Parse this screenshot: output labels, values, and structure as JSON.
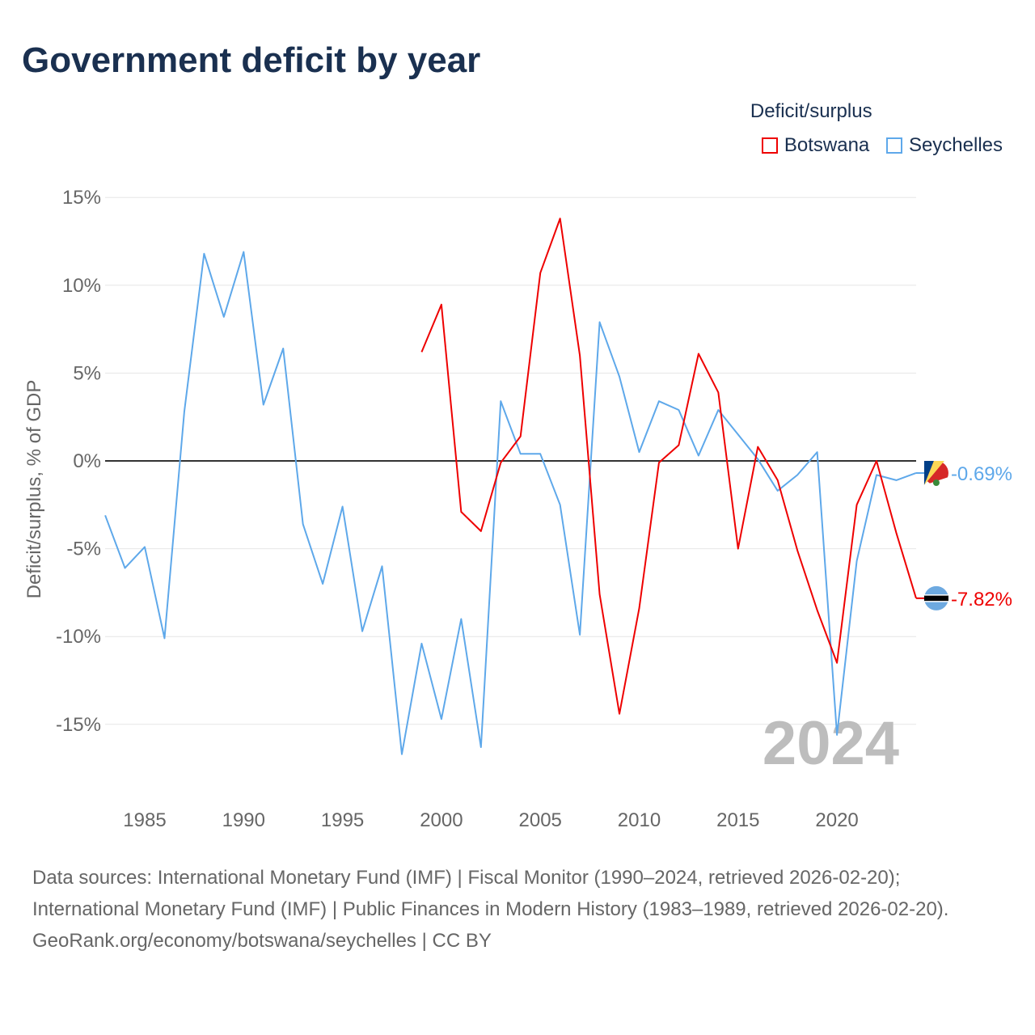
{
  "title": "Government deficit by year",
  "legend": {
    "title": "Deficit/surplus",
    "items": [
      {
        "name": "Botswana",
        "color": "#ee0000"
      },
      {
        "name": "Seychelles",
        "color": "#5ea8ea"
      }
    ]
  },
  "watermark_year": "2024",
  "end_labels": {
    "Botswana": "-7.82%",
    "Seychelles": "-0.69%"
  },
  "footer": {
    "sources": "Data sources: International Monetary Fund (IMF) | Fiscal Monitor (1990–2024, retrieved 2026-02-20); International Monetary Fund (IMF) | Public Finances in Modern History (1983–1989, retrieved 2026-02-20).",
    "credit": "GeoRank.org/economy/botswana/seychelles | CC BY"
  },
  "chart_data": {
    "type": "line",
    "title": "Government deficit by year",
    "xlabel": "",
    "ylabel": "Deficit/surplus, % of GDP",
    "xlim": [
      1983,
      2024
    ],
    "ylim": [
      -18,
      16
    ],
    "x_ticks": [
      1985,
      1990,
      1995,
      2000,
      2005,
      2010,
      2015,
      2020
    ],
    "y_ticks": [
      15,
      10,
      5,
      0,
      -5,
      -10,
      -15
    ],
    "y_tick_labels": [
      "15%",
      "10%",
      "5%",
      "0%",
      "-5%",
      "-10%",
      "-15%"
    ],
    "grid": true,
    "legend_position": "top-right",
    "series": [
      {
        "name": "Seychelles",
        "color": "#5ea8ea",
        "x": [
          1983,
          1984,
          1985,
          1986,
          1987,
          1988,
          1989,
          1990,
          1991,
          1992,
          1993,
          1994,
          1995,
          1996,
          1997,
          1998,
          1999,
          2000,
          2001,
          2002,
          2003,
          2004,
          2005,
          2006,
          2007,
          2008,
          2009,
          2010,
          2011,
          2012,
          2013,
          2014,
          2015,
          2016,
          2017,
          2018,
          2019,
          2020,
          2021,
          2022,
          2023,
          2024
        ],
        "values": [
          -3.1,
          -6.1,
          -4.9,
          -10.1,
          2.8,
          11.8,
          8.2,
          11.9,
          3.2,
          6.4,
          -3.6,
          -7.0,
          -2.6,
          -9.7,
          -6.0,
          -16.7,
          -10.4,
          -14.7,
          -9.0,
          -16.3,
          3.4,
          0.4,
          0.4,
          -2.5,
          -9.9,
          7.9,
          4.8,
          0.5,
          3.4,
          2.9,
          0.3,
          2.9,
          1.5,
          0.1,
          -1.7,
          -0.8,
          0.5,
          -15.6,
          -5.7,
          -0.8,
          -1.1,
          -0.69
        ]
      },
      {
        "name": "Botswana",
        "color": "#ee0000",
        "x": [
          1999,
          2000,
          2001,
          2002,
          2003,
          2004,
          2005,
          2006,
          2007,
          2008,
          2009,
          2010,
          2011,
          2012,
          2013,
          2014,
          2015,
          2016,
          2017,
          2018,
          2019,
          2020,
          2021,
          2022,
          2023,
          2024
        ],
        "values": [
          6.2,
          8.9,
          -2.9,
          -4.0,
          -0.1,
          1.4,
          10.7,
          13.8,
          6.0,
          -7.6,
          -14.4,
          -8.4,
          -0.1,
          0.9,
          6.1,
          3.9,
          -5.0,
          0.8,
          -1.1,
          -5.1,
          -8.5,
          -11.5,
          -2.5,
          0.0,
          -4.1,
          -7.82
        ]
      }
    ]
  }
}
